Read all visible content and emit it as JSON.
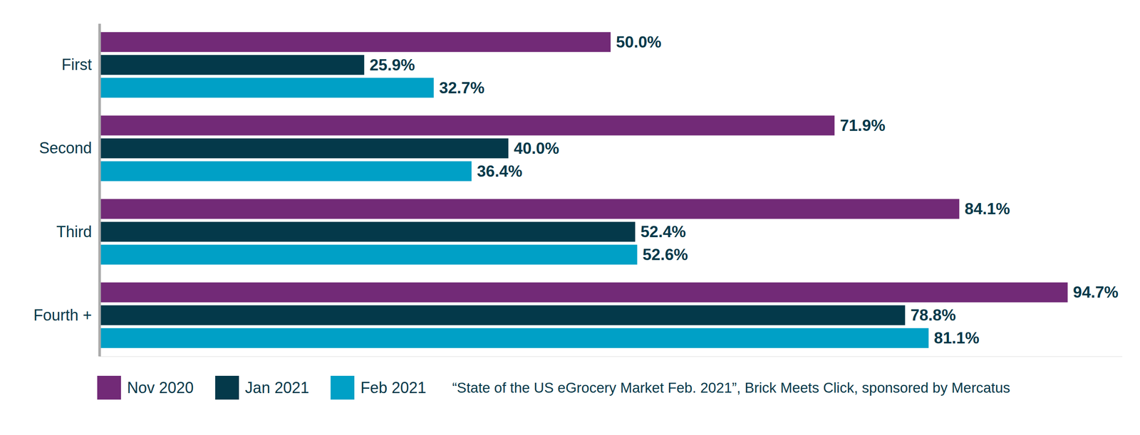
{
  "chart_data": {
    "type": "bar",
    "orientation": "horizontal",
    "categories": [
      "First",
      "Second",
      "Third",
      "Fourth +"
    ],
    "series": [
      {
        "name": "Nov 2020",
        "color": "#722a77",
        "values": [
          50.0,
          71.9,
          84.1,
          94.7
        ],
        "value_labels": [
          "50.0%",
          "71.9%",
          "84.1%",
          "94.7%"
        ]
      },
      {
        "name": "Jan 2021",
        "color": "#04394a",
        "values": [
          25.9,
          40.0,
          52.4,
          78.8
        ],
        "value_labels": [
          "25.9%",
          "40.0%",
          "52.4%",
          "78.8%"
        ]
      },
      {
        "name": "Feb 2021",
        "color": "#00a0c6",
        "values": [
          32.7,
          36.4,
          52.6,
          81.1
        ],
        "value_labels": [
          "32.7%",
          "36.4%",
          "52.6%",
          "81.1%"
        ]
      }
    ],
    "xlim": [
      0,
      100
    ],
    "xticks": [],
    "tick_labels": "y",
    "data_labels": true,
    "legend": "bottom",
    "caption": "“State of the US eGrocery Market Feb. 2021”, Brick Meets Click, sponsored by Mercatus"
  }
}
